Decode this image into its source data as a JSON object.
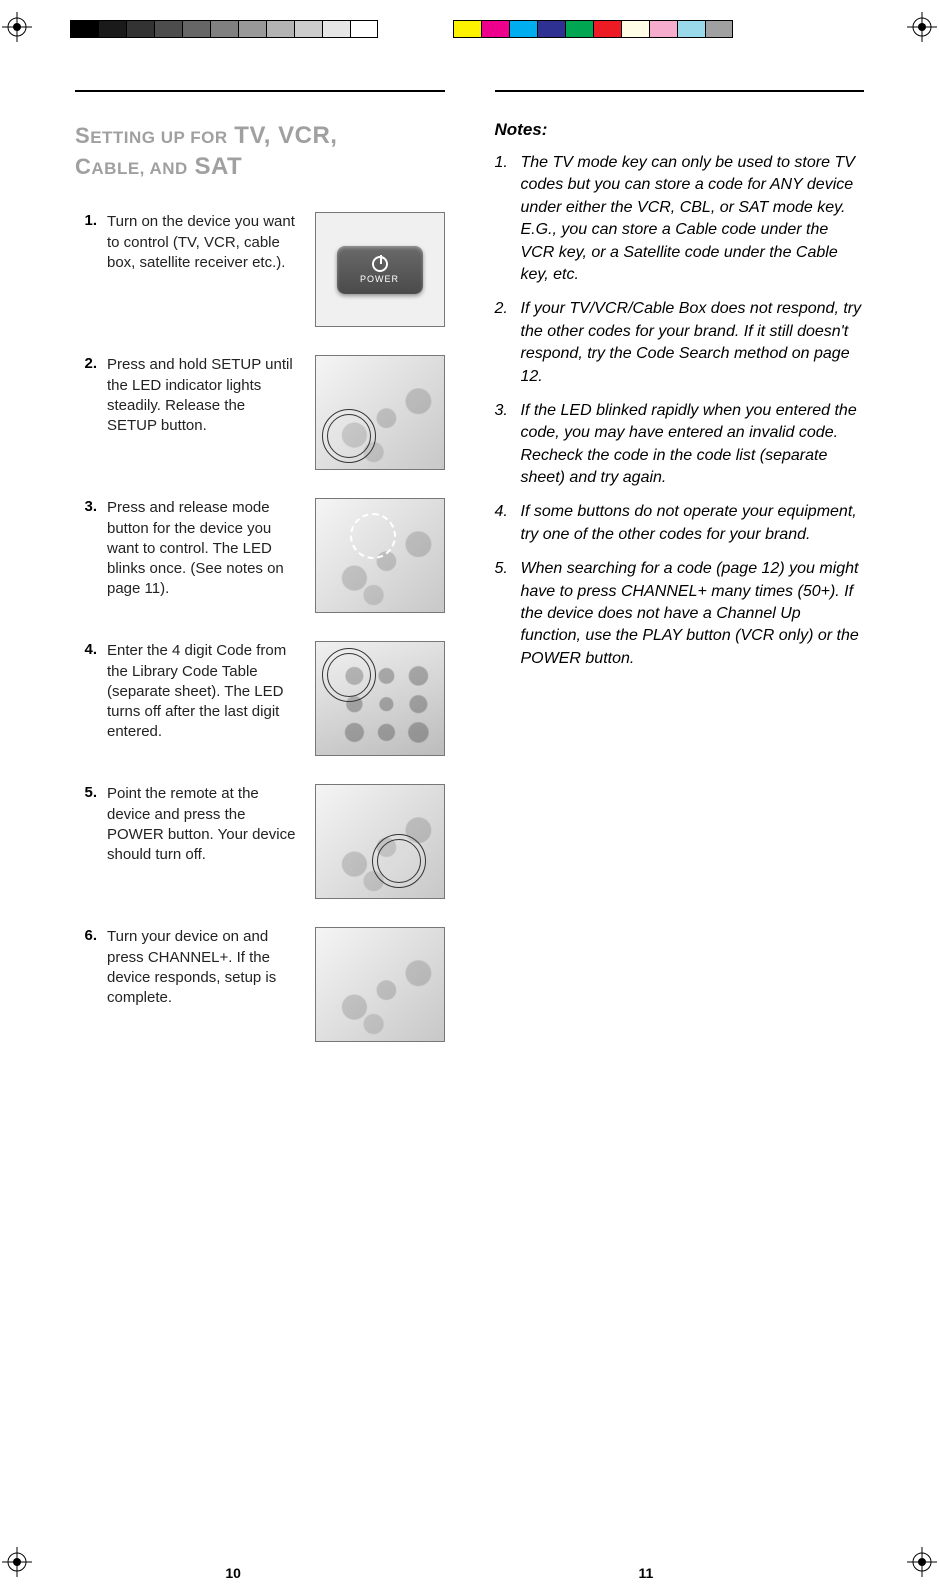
{
  "print_marks": {
    "grayscale_swatches": [
      "#000000",
      "#1a1a1a",
      "#333333",
      "#4d4d4d",
      "#666666",
      "#808080",
      "#999999",
      "#b3b3b3",
      "#cccccc",
      "#e6e6e6",
      "#ffffff"
    ],
    "color_swatches": [
      "#fff200",
      "#ec008c",
      "#00aeef",
      "#2e3192",
      "#00a651",
      "#ed1c24",
      "#fffde6",
      "#f6adcd",
      "#99d9ea",
      "#a0a0a0"
    ]
  },
  "left_page": {
    "title_html": "S<span style='font-size:17px'>ETTING UP FOR</span> <span class='big'>TV, VCR,</span><br>C<span style='font-size:17px'>ABLE, AND</span> <span class='big'>SAT</span>",
    "steps": [
      {
        "n": "1.",
        "text": "Turn on the device you want to control (TV, VCR, cable box, satellite receiver etc.).",
        "fig": "power"
      },
      {
        "n": "2.",
        "text": "Press and hold SETUP until the LED indicator lights steadily. Release the SETUP button.",
        "fig": "remote_solid_bl"
      },
      {
        "n": "3.",
        "text": "Press and release mode button for the device you want to control. The LED blinks once. (See notes on page 11).",
        "fig": "remote_dash"
      },
      {
        "n": "4.",
        "text": "Enter the 4 digit Code from the Library Code Table (separate sheet). The LED turns off after the last digit entered.",
        "fig": "keypad"
      },
      {
        "n": "5.",
        "text": "Point the remote at the device and press the POWER button. Your device should turn off.",
        "fig": "remote_solid_br"
      },
      {
        "n": "6.",
        "text": "Turn your device on and press CHANNEL+. If the device responds, setup is complete.",
        "fig": "remote_plain"
      }
    ],
    "page_number": "10",
    "power_label": "POWER"
  },
  "right_page": {
    "notes_heading": "Notes:",
    "notes": [
      {
        "n": "1.",
        "text": "The TV mode key can only be used to store TV codes but you can store a code for ANY device under either the VCR, CBL, or SAT mode key. E.G., you can store a Cable code under the VCR key, or a Satellite code under the Cable key, etc."
      },
      {
        "n": "2.",
        "text": "If your TV/VCR/Cable Box does not respond, try the other codes for your brand. If it still doesn't respond, try the Code Search method on page 12."
      },
      {
        "n": "3.",
        "text": "If the LED blinked rapidly when you entered the code, you may have entered an invalid code. Recheck the code in the code list (separate sheet) and try again."
      },
      {
        "n": "4.",
        "text": "If some buttons do not operate your equipment, try one of the other codes for your brand."
      },
      {
        "n": "5.",
        "text": "When searching for a code (page 12) you might have to press CHANNEL+ many times (50+). If the device does not have a Channel Up function, use the PLAY button (VCR only) or the POWER button."
      }
    ],
    "page_number": "11"
  }
}
